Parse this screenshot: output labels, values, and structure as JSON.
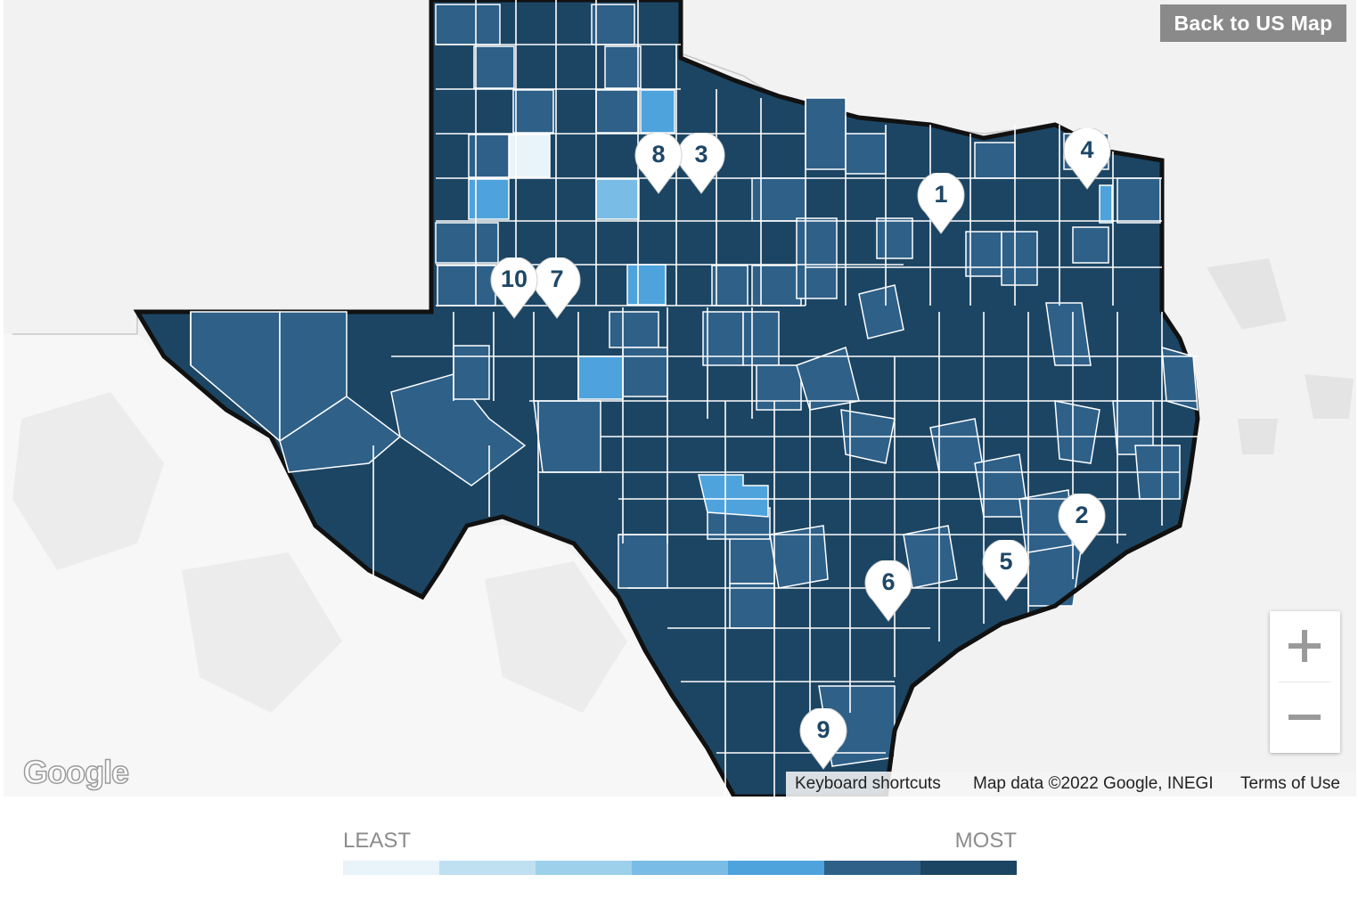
{
  "header": {
    "back_button": "Back to US Map"
  },
  "legend": {
    "least_label": "LEAST",
    "most_label": "MOST",
    "scale_colors": [
      "#e8f3fa",
      "#bfe0f0",
      "#9dd0ea",
      "#79bce6",
      "#4ea3dc",
      "#2e6088",
      "#1c4563"
    ]
  },
  "markers": [
    {
      "label": "1"
    },
    {
      "label": "2"
    },
    {
      "label": "3"
    },
    {
      "label": "4"
    },
    {
      "label": "5"
    },
    {
      "label": "6"
    },
    {
      "label": "7"
    },
    {
      "label": "8"
    },
    {
      "label": "9"
    },
    {
      "label": "10"
    }
  ],
  "attribution": {
    "shortcuts": "Keyboard shortcuts",
    "map_data": "Map data ©2022 Google, INEGI",
    "terms": "Terms of Use"
  },
  "google_logo": "Google",
  "zoom": {
    "in_icon": "plus-icon",
    "out_icon": "minus-icon"
  },
  "colors": {
    "dark": "#1c4563",
    "medium": "#2e6088",
    "light": "#4ea3dc",
    "marker_text": "#1e4766"
  }
}
